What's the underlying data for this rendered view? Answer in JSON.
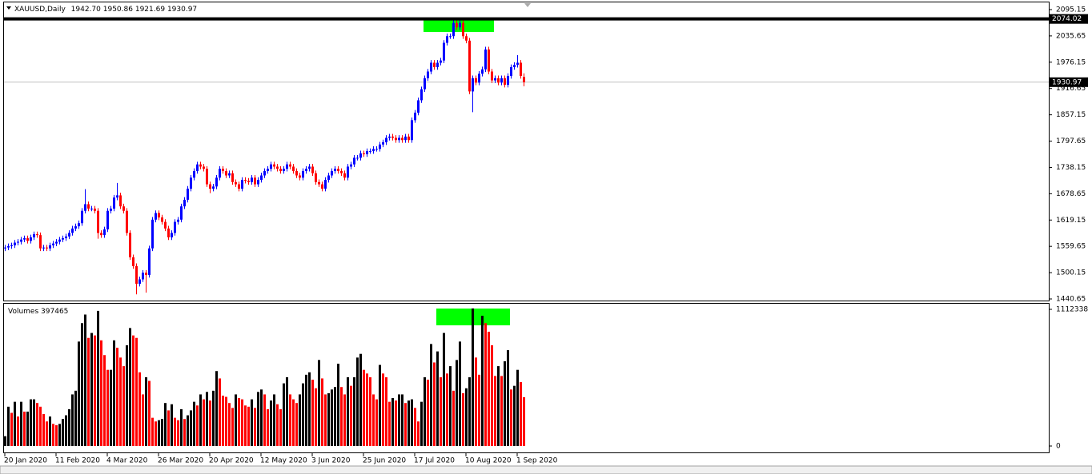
{
  "header": {
    "symbol": "XAUUSD,Daily",
    "ohlc": [
      "1942.70",
      "1950.86",
      "1921.69",
      "1930.97"
    ]
  },
  "chart_data": [
    {
      "type": "candlestick",
      "up_color": "#0000ff",
      "down_color": "#ff0000",
      "grid": false,
      "categories": [
        "20 Jan 2020",
        null,
        null,
        null,
        null,
        null,
        null,
        null,
        null,
        null,
        null,
        null,
        null,
        null,
        null,
        null,
        "11 Feb 2020",
        null,
        null,
        null,
        null,
        null,
        null,
        null,
        null,
        null,
        null,
        null,
        null,
        null,
        null,
        null,
        "4 Mar 2020",
        null,
        null,
        null,
        null,
        null,
        null,
        null,
        null,
        null,
        null,
        null,
        null,
        null,
        null,
        null,
        "26 Mar 2020",
        null,
        null,
        null,
        null,
        null,
        null,
        null,
        null,
        null,
        null,
        null,
        null,
        null,
        null,
        null,
        "20 Apr 2020",
        null,
        null,
        null,
        null,
        null,
        null,
        null,
        null,
        null,
        null,
        null,
        null,
        null,
        null,
        null,
        "12 May 2020",
        null,
        null,
        null,
        null,
        null,
        null,
        null,
        null,
        null,
        null,
        null,
        null,
        null,
        null,
        null,
        "3 Jun 2020",
        null,
        null,
        null,
        null,
        null,
        null,
        null,
        null,
        null,
        null,
        null,
        null,
        null,
        null,
        null,
        "25 Jun 2020",
        null,
        null,
        null,
        null,
        null,
        null,
        null,
        null,
        null,
        null,
        null,
        null,
        null,
        null,
        null,
        "17 Jul 2020",
        null,
        null,
        null,
        null,
        null,
        null,
        null,
        null,
        null,
        null,
        null,
        null,
        null,
        null,
        null,
        "10 Aug 2020",
        null,
        null,
        null,
        null,
        null,
        null,
        null,
        null,
        null,
        null,
        null,
        null,
        null,
        null,
        null,
        "1 Sep 2020",
        null,
        null
      ],
      "open": [
        1555,
        1557,
        1560,
        1562,
        1568,
        1570,
        1575,
        1578,
        1572,
        1580,
        1587,
        1585,
        1555,
        1557,
        1555,
        1562,
        1566,
        1570,
        1575,
        1578,
        1582,
        1590,
        1600,
        1605,
        1612,
        1640,
        1655,
        1645,
        1645,
        1640,
        1590,
        1585,
        1598,
        1640,
        1645,
        1670,
        1675,
        1650,
        1640,
        1590,
        1535,
        1515,
        1475,
        1485,
        1500,
        1495,
        1555,
        1620,
        1635,
        1625,
        1615,
        1600,
        1580,
        1590,
        1615,
        1620,
        1650,
        1665,
        1690,
        1715,
        1730,
        1745,
        1740,
        1735,
        1700,
        1690,
        1695,
        1715,
        1735,
        1730,
        1720,
        1725,
        1705,
        1700,
        1690,
        1710,
        1708,
        1705,
        1715,
        1700,
        1710,
        1720,
        1730,
        1735,
        1745,
        1740,
        1735,
        1730,
        1735,
        1745,
        1740,
        1730,
        1720,
        1715,
        1730,
        1735,
        1740,
        1725,
        1705,
        1700,
        1690,
        1710,
        1720,
        1730,
        1735,
        1730,
        1725,
        1715,
        1740,
        1745,
        1760,
        1760,
        1770,
        1768,
        1775,
        1775,
        1780,
        1780,
        1790,
        1795,
        1805,
        1808,
        1805,
        1800,
        1805,
        1800,
        1808,
        1800,
        1845,
        1862,
        1890,
        1915,
        1940,
        1955,
        1975,
        1965,
        1975,
        1980,
        2020,
        2035,
        2035,
        2065,
        2055,
        2065,
        2035,
        2025,
        1910,
        1940,
        1930,
        1950,
        1960,
        2005,
        1955,
        1935,
        1940,
        1930,
        1940,
        1925,
        1945,
        1965,
        1970,
        1975,
        1942.7
      ],
      "high": [
        1563,
        1566,
        1568,
        1574,
        1576,
        1581,
        1584,
        1584,
        1586,
        1593,
        1593,
        1591,
        1563,
        1563,
        1568,
        1572,
        1576,
        1581,
        1584,
        1588,
        1596,
        1606,
        1611,
        1618,
        1646,
        1689,
        1661,
        1651,
        1651,
        1646,
        1596,
        1604,
        1646,
        1651,
        1676,
        1703,
        1681,
        1656,
        1646,
        1596,
        1541,
        1521,
        1491,
        1506,
        1506,
        1561,
        1626,
        1641,
        1641,
        1631,
        1621,
        1606,
        1596,
        1621,
        1626,
        1656,
        1671,
        1696,
        1721,
        1736,
        1751,
        1751,
        1746,
        1741,
        1706,
        1701,
        1721,
        1741,
        1741,
        1736,
        1731,
        1731,
        1711,
        1706,
        1716,
        1716,
        1714,
        1721,
        1721,
        1716,
        1726,
        1736,
        1741,
        1751,
        1751,
        1746,
        1741,
        1741,
        1751,
        1751,
        1746,
        1736,
        1726,
        1736,
        1741,
        1746,
        1746,
        1731,
        1711,
        1706,
        1716,
        1726,
        1736,
        1741,
        1741,
        1736,
        1731,
        1746,
        1751,
        1766,
        1766,
        1776,
        1776,
        1781,
        1781,
        1786,
        1786,
        1796,
        1801,
        1811,
        1814,
        1814,
        1811,
        1811,
        1811,
        1814,
        1814,
        1851,
        1868,
        1896,
        1921,
        1946,
        1961,
        1981,
        1981,
        1981,
        1986,
        2026,
        2041,
        2041,
        2071,
        2071,
        2075,
        2071,
        2041,
        2031,
        1946,
        1946,
        1956,
        1966,
        2011,
        2011,
        1961,
        1946,
        1946,
        1946,
        1946,
        1951,
        1971,
        1976,
        1992,
        1981,
        1950.86
      ],
      "low": [
        1549,
        1551,
        1554,
        1556,
        1562,
        1564,
        1569,
        1566,
        1566,
        1574,
        1579,
        1549,
        1549,
        1549,
        1549,
        1556,
        1560,
        1564,
        1569,
        1572,
        1576,
        1584,
        1594,
        1599,
        1606,
        1634,
        1639,
        1639,
        1634,
        1577,
        1579,
        1579,
        1592,
        1634,
        1639,
        1664,
        1644,
        1634,
        1584,
        1529,
        1509,
        1451,
        1469,
        1479,
        1455,
        1489,
        1549,
        1614,
        1619,
        1609,
        1594,
        1574,
        1574,
        1584,
        1609,
        1614,
        1644,
        1659,
        1684,
        1709,
        1724,
        1734,
        1729,
        1694,
        1680,
        1684,
        1689,
        1709,
        1724,
        1714,
        1714,
        1699,
        1694,
        1684,
        1684,
        1702,
        1699,
        1699,
        1694,
        1694,
        1704,
        1714,
        1724,
        1729,
        1734,
        1729,
        1724,
        1724,
        1729,
        1734,
        1724,
        1714,
        1709,
        1709,
        1724,
        1729,
        1719,
        1699,
        1694,
        1684,
        1684,
        1704,
        1714,
        1724,
        1724,
        1719,
        1709,
        1709,
        1734,
        1739,
        1754,
        1754,
        1762,
        1762,
        1769,
        1769,
        1774,
        1774,
        1784,
        1789,
        1799,
        1799,
        1794,
        1794,
        1794,
        1794,
        1794,
        1794,
        1839,
        1856,
        1884,
        1909,
        1934,
        1949,
        1959,
        1959,
        1969,
        1974,
        2014,
        2029,
        2029,
        2049,
        2049,
        2029,
        2019,
        1904,
        1863,
        1924,
        1924,
        1944,
        1954,
        1949,
        1929,
        1929,
        1924,
        1924,
        1919,
        1919,
        1939,
        1959,
        1964,
        1939,
        1921.69
      ],
      "close": [
        1557,
        1560,
        1562,
        1568,
        1570,
        1575,
        1578,
        1572,
        1580,
        1587,
        1585,
        1555,
        1557,
        1555,
        1562,
        1566,
        1570,
        1575,
        1578,
        1582,
        1590,
        1600,
        1605,
        1612,
        1640,
        1655,
        1645,
        1645,
        1640,
        1590,
        1585,
        1598,
        1640,
        1645,
        1670,
        1675,
        1650,
        1640,
        1590,
        1535,
        1515,
        1475,
        1485,
        1500,
        1495,
        1555,
        1620,
        1635,
        1625,
        1615,
        1600,
        1580,
        1590,
        1615,
        1620,
        1650,
        1665,
        1690,
        1715,
        1730,
        1745,
        1740,
        1735,
        1700,
        1690,
        1695,
        1715,
        1735,
        1730,
        1720,
        1725,
        1705,
        1700,
        1690,
        1710,
        1708,
        1705,
        1715,
        1700,
        1710,
        1720,
        1730,
        1735,
        1745,
        1740,
        1735,
        1730,
        1735,
        1745,
        1740,
        1730,
        1720,
        1715,
        1730,
        1735,
        1740,
        1725,
        1705,
        1700,
        1690,
        1710,
        1720,
        1730,
        1735,
        1730,
        1725,
        1715,
        1740,
        1745,
        1760,
        1760,
        1770,
        1768,
        1775,
        1775,
        1780,
        1780,
        1790,
        1795,
        1805,
        1808,
        1805,
        1800,
        1805,
        1800,
        1808,
        1800,
        1845,
        1862,
        1890,
        1915,
        1940,
        1955,
        1975,
        1965,
        1975,
        1980,
        2020,
        2035,
        2035,
        2065,
        2055,
        2065,
        2035,
        2025,
        1910,
        1940,
        1930,
        1950,
        1960,
        2005,
        1955,
        1935,
        1940,
        1930,
        1940,
        1925,
        1945,
        1965,
        1970,
        1975,
        1945,
        1930.97
      ],
      "ylim": [
        1440.65,
        2095.15
      ],
      "yticks": [
        2095.15,
        2035.65,
        1976.15,
        1916.65,
        1857.15,
        1797.65,
        1738.15,
        1678.65,
        1619.15,
        1559.65,
        1500.15,
        1440.65
      ],
      "hline": {
        "value": 2074.02,
        "label": "2074.02",
        "color": "#000000"
      },
      "current_price": {
        "value": 1930.97,
        "label": "1930.97"
      }
    },
    {
      "type": "bar",
      "title": "Volumes",
      "up_color": "#000000",
      "down_color": "#ff0000",
      "values": [
        80000,
        320000,
        270000,
        360000,
        240000,
        360000,
        280000,
        280000,
        380000,
        380000,
        350000,
        320000,
        260000,
        200000,
        240000,
        180000,
        170000,
        180000,
        220000,
        250000,
        300000,
        420000,
        450000,
        850000,
        1000000,
        1070000,
        880000,
        920000,
        900000,
        1100000,
        860000,
        740000,
        620000,
        620000,
        860000,
        800000,
        720000,
        650000,
        820000,
        960000,
        900000,
        880000,
        600000,
        420000,
        560000,
        530000,
        230000,
        200000,
        210000,
        220000,
        350000,
        290000,
        340000,
        230000,
        210000,
        300000,
        220000,
        250000,
        290000,
        360000,
        330000,
        420000,
        380000,
        440000,
        370000,
        450000,
        610000,
        550000,
        410000,
        400000,
        350000,
        310000,
        420000,
        390000,
        380000,
        330000,
        320000,
        380000,
        310000,
        440000,
        460000,
        420000,
        300000,
        370000,
        420000,
        340000,
        300000,
        510000,
        560000,
        420000,
        380000,
        350000,
        420000,
        510000,
        580000,
        600000,
        540000,
        470000,
        700000,
        550000,
        420000,
        430000,
        460000,
        480000,
        670000,
        480000,
        420000,
        560000,
        490000,
        560000,
        720000,
        750000,
        620000,
        590000,
        560000,
        420000,
        380000,
        660000,
        590000,
        560000,
        360000,
        390000,
        370000,
        420000,
        420000,
        350000,
        370000,
        380000,
        310000,
        200000,
        360000,
        560000,
        540000,
        830000,
        680000,
        770000,
        560000,
        920000,
        590000,
        650000,
        450000,
        700000,
        850000,
        430000,
        470000,
        560000,
        1120000,
        720000,
        580000,
        1060000,
        1000000,
        930000,
        820000,
        570000,
        650000,
        570000,
        690000,
        780000,
        460000,
        490000,
        620000,
        520000,
        397465
      ],
      "ylim": [
        0,
        1112338
      ],
      "yticks": [
        0,
        1112338
      ]
    }
  ]
}
